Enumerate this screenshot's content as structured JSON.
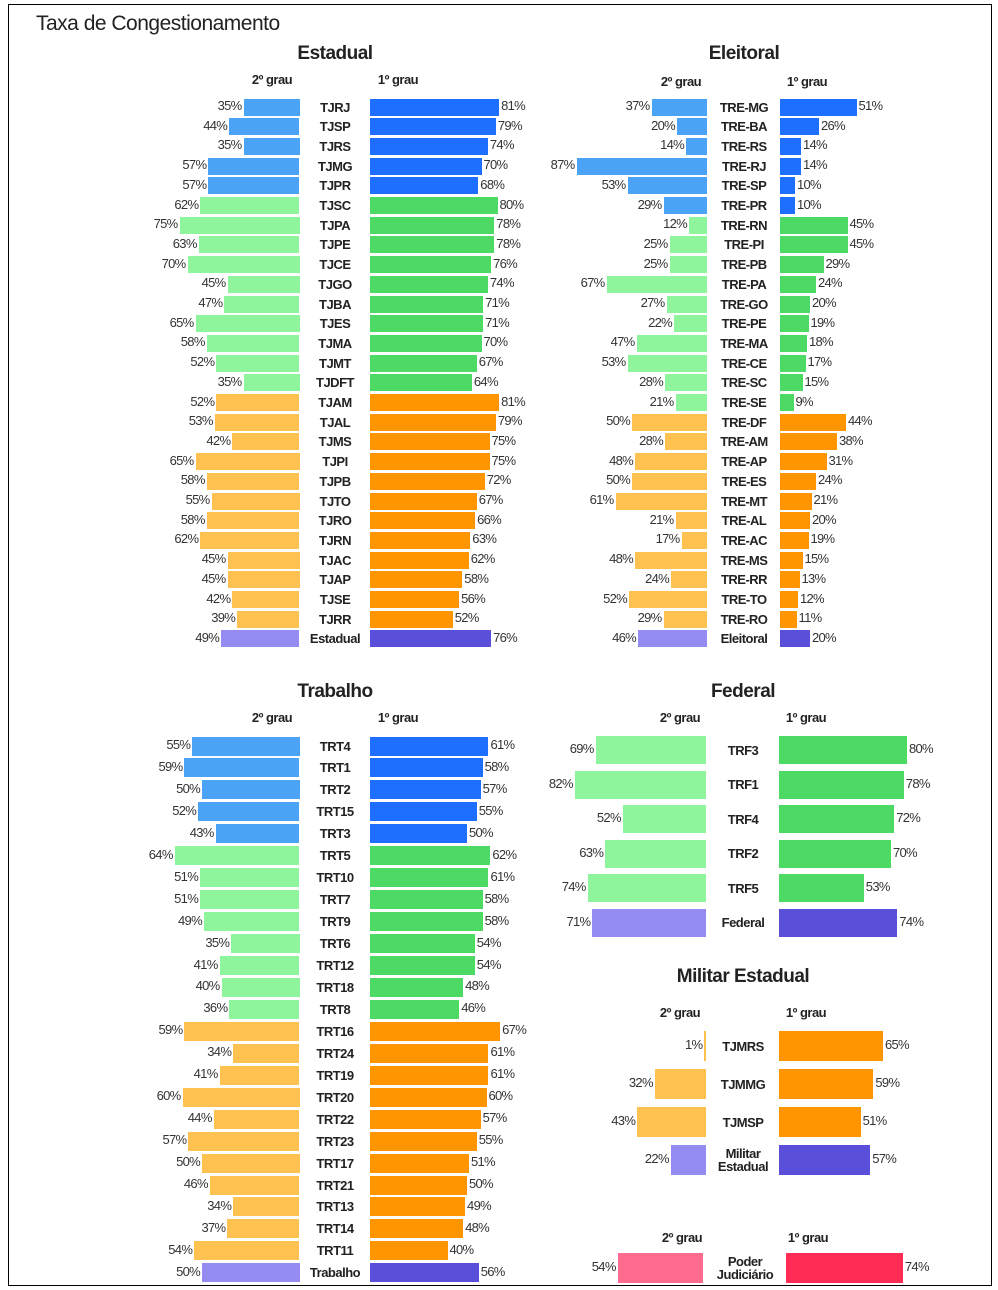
{
  "title": "Taxa de Congestionamento",
  "chart_data": [
    {
      "type": "bar",
      "title": "Estadual",
      "categories": [
        "TJRJ",
        "TJSP",
        "TJRS",
        "TJMG",
        "TJPR",
        "TJSC",
        "TJPA",
        "TJPE",
        "TJCE",
        "TJGO",
        "TJBA",
        "TJES",
        "TJMA",
        "TJMT",
        "TJDFT",
        "TJAM",
        "TJAL",
        "TJMS",
        "TJPI",
        "TJPB",
        "TJTO",
        "TJRO",
        "TJRN",
        "TJAC",
        "TJAP",
        "TJSE",
        "TJRR",
        "Estadual"
      ],
      "series": [
        {
          "name": "2º grau",
          "values": [
            35,
            44,
            35,
            57,
            57,
            62,
            75,
            63,
            70,
            45,
            47,
            65,
            58,
            52,
            35,
            52,
            53,
            42,
            65,
            58,
            55,
            58,
            62,
            45,
            45,
            42,
            39,
            49
          ],
          "value_labels": [
            "35%",
            "44%",
            "35%",
            "57%",
            "57%",
            "62%",
            "75%",
            "63%",
            "70%",
            "45%",
            "47%",
            "65%",
            "58%",
            "52%",
            "35%",
            "52%",
            "53%",
            "42%",
            "65%",
            "58%",
            "55%",
            "58%",
            "62%",
            "45%",
            "45%",
            "42%",
            "39%",
            "49%"
          ],
          "colors": [
            "#4aa3f5",
            "#4aa3f5",
            "#4aa3f5",
            "#4aa3f5",
            "#4aa3f5",
            "#8ef59d",
            "#8ef59d",
            "#8ef59d",
            "#8ef59d",
            "#8ef59d",
            "#8ef59d",
            "#8ef59d",
            "#8ef59d",
            "#8ef59d",
            "#8ef59d",
            "#ffc14f",
            "#ffc14f",
            "#ffc14f",
            "#ffc14f",
            "#ffc14f",
            "#ffc14f",
            "#ffc14f",
            "#ffc14f",
            "#ffc14f",
            "#ffc14f",
            "#ffc14f",
            "#ffc14f",
            "#958cf2"
          ]
        },
        {
          "name": "1º grau",
          "values": [
            81,
            79,
            74,
            70,
            68,
            80,
            78,
            78,
            76,
            74,
            71,
            71,
            70,
            67,
            64,
            81,
            79,
            75,
            75,
            72,
            67,
            66,
            63,
            62,
            58,
            56,
            52,
            76
          ],
          "value_labels": [
            "81%",
            "79%",
            "74%",
            "70%",
            "68%",
            "80%",
            "78%",
            "78%",
            "76%",
            "74%",
            "71%",
            "71%",
            "70%",
            "67%",
            "64%",
            "81%",
            "79%",
            "75%",
            "75%",
            "72%",
            "67%",
            "66%",
            "63%",
            "62%",
            "58%",
            "56%",
            "52%",
            "76%"
          ],
          "colors": [
            "#1f6fff",
            "#1f6fff",
            "#1f6fff",
            "#1f6fff",
            "#1f6fff",
            "#4cd964",
            "#4cd964",
            "#4cd964",
            "#4cd964",
            "#4cd964",
            "#4cd964",
            "#4cd964",
            "#4cd964",
            "#4cd964",
            "#4cd964",
            "#ff9500",
            "#ff9500",
            "#ff9500",
            "#ff9500",
            "#ff9500",
            "#ff9500",
            "#ff9500",
            "#ff9500",
            "#ff9500",
            "#ff9500",
            "#ff9500",
            "#ff9500",
            "#5a4fd8"
          ]
        }
      ]
    },
    {
      "type": "bar",
      "title": "Eleitoral",
      "categories": [
        "TRE-MG",
        "TRE-BA",
        "TRE-RS",
        "TRE-RJ",
        "TRE-SP",
        "TRE-PR",
        "TRE-RN",
        "TRE-PI",
        "TRE-PB",
        "TRE-PA",
        "TRE-GO",
        "TRE-PE",
        "TRE-MA",
        "TRE-CE",
        "TRE-SC",
        "TRE-SE",
        "TRE-DF",
        "TRE-AM",
        "TRE-AP",
        "TRE-ES",
        "TRE-MT",
        "TRE-AL",
        "TRE-AC",
        "TRE-MS",
        "TRE-RR",
        "TRE-TO",
        "TRE-RO",
        "Eleitoral"
      ],
      "series": [
        {
          "name": "2º grau",
          "values": [
            37,
            20,
            14,
            87,
            53,
            29,
            12,
            25,
            25,
            67,
            27,
            22,
            47,
            53,
            28,
            21,
            50,
            28,
            48,
            50,
            61,
            21,
            17,
            48,
            24,
            52,
            29,
            46
          ],
          "value_labels": [
            "37%",
            "20%",
            "14%",
            "87%",
            "53%",
            "29%",
            "12%",
            "25%",
            "25%",
            "67%",
            "27%",
            "22%",
            "47%",
            "53%",
            "28%",
            "21%",
            "50%",
            "28%",
            "48%",
            "50%",
            "61%",
            "21%",
            "17%",
            "48%",
            "24%",
            "52%",
            "29%",
            "46%"
          ],
          "colors": [
            "#4aa3f5",
            "#4aa3f5",
            "#4aa3f5",
            "#4aa3f5",
            "#4aa3f5",
            "#4aa3f5",
            "#8ef59d",
            "#8ef59d",
            "#8ef59d",
            "#8ef59d",
            "#8ef59d",
            "#8ef59d",
            "#8ef59d",
            "#8ef59d",
            "#8ef59d",
            "#8ef59d",
            "#ffc14f",
            "#ffc14f",
            "#ffc14f",
            "#ffc14f",
            "#ffc14f",
            "#ffc14f",
            "#ffc14f",
            "#ffc14f",
            "#ffc14f",
            "#ffc14f",
            "#ffc14f",
            "#958cf2"
          ]
        },
        {
          "name": "1º grau",
          "values": [
            51,
            26,
            14,
            14,
            10,
            10,
            45,
            45,
            29,
            24,
            20,
            19,
            18,
            17,
            15,
            9,
            44,
            38,
            31,
            24,
            21,
            20,
            19,
            15,
            13,
            12,
            11,
            20
          ],
          "value_labels": [
            "51%",
            "26%",
            "14%",
            "14%",
            "10%",
            "10%",
            "45%",
            "45%",
            "29%",
            "24%",
            "20%",
            "19%",
            "18%",
            "17%",
            "15%",
            "9%",
            "44%",
            "38%",
            "31%",
            "24%",
            "21%",
            "20%",
            "19%",
            "15%",
            "13%",
            "12%",
            "11%",
            "20%"
          ],
          "colors": [
            "#1f6fff",
            "#1f6fff",
            "#1f6fff",
            "#1f6fff",
            "#1f6fff",
            "#1f6fff",
            "#4cd964",
            "#4cd964",
            "#4cd964",
            "#4cd964",
            "#4cd964",
            "#4cd964",
            "#4cd964",
            "#4cd964",
            "#4cd964",
            "#4cd964",
            "#ff9500",
            "#ff9500",
            "#ff9500",
            "#ff9500",
            "#ff9500",
            "#ff9500",
            "#ff9500",
            "#ff9500",
            "#ff9500",
            "#ff9500",
            "#ff9500",
            "#5a4fd8"
          ]
        }
      ]
    },
    {
      "type": "bar",
      "title": "Trabalho",
      "categories": [
        "TRT4",
        "TRT1",
        "TRT2",
        "TRT15",
        "TRT3",
        "TRT5",
        "TRT10",
        "TRT7",
        "TRT9",
        "TRT6",
        "TRT12",
        "TRT18",
        "TRT8",
        "TRT16",
        "TRT24",
        "TRT19",
        "TRT20",
        "TRT22",
        "TRT23",
        "TRT17",
        "TRT21",
        "TRT13",
        "TRT14",
        "TRT11",
        "Trabalho"
      ],
      "series": [
        {
          "name": "2º grau",
          "values": [
            55,
            59,
            50,
            52,
            43,
            64,
            51,
            51,
            49,
            35,
            41,
            40,
            36,
            59,
            34,
            41,
            60,
            44,
            57,
            50,
            46,
            34,
            37,
            54,
            50
          ],
          "value_labels": [
            "55%",
            "59%",
            "50%",
            "52%",
            "43%",
            "64%",
            "51%",
            "51%",
            "49%",
            "35%",
            "41%",
            "40%",
            "36%",
            "59%",
            "34%",
            "41%",
            "60%",
            "44%",
            "57%",
            "50%",
            "46%",
            "34%",
            "37%",
            "54%",
            "50%"
          ],
          "colors": [
            "#4aa3f5",
            "#4aa3f5",
            "#4aa3f5",
            "#4aa3f5",
            "#4aa3f5",
            "#8ef59d",
            "#8ef59d",
            "#8ef59d",
            "#8ef59d",
            "#8ef59d",
            "#8ef59d",
            "#8ef59d",
            "#8ef59d",
            "#ffc14f",
            "#ffc14f",
            "#ffc14f",
            "#ffc14f",
            "#ffc14f",
            "#ffc14f",
            "#ffc14f",
            "#ffc14f",
            "#ffc14f",
            "#ffc14f",
            "#ffc14f",
            "#958cf2"
          ]
        },
        {
          "name": "1º grau",
          "values": [
            61,
            58,
            57,
            55,
            50,
            62,
            61,
            58,
            58,
            54,
            54,
            48,
            46,
            67,
            61,
            61,
            60,
            57,
            55,
            51,
            50,
            49,
            48,
            40,
            56
          ],
          "value_labels": [
            "61%",
            "58%",
            "57%",
            "55%",
            "50%",
            "62%",
            "61%",
            "58%",
            "58%",
            "54%",
            "54%",
            "48%",
            "46%",
            "67%",
            "61%",
            "61%",
            "60%",
            "57%",
            "55%",
            "51%",
            "50%",
            "49%",
            "48%",
            "40%",
            "56%"
          ],
          "colors": [
            "#1f6fff",
            "#1f6fff",
            "#1f6fff",
            "#1f6fff",
            "#1f6fff",
            "#4cd964",
            "#4cd964",
            "#4cd964",
            "#4cd964",
            "#4cd964",
            "#4cd964",
            "#4cd964",
            "#4cd964",
            "#ff9500",
            "#ff9500",
            "#ff9500",
            "#ff9500",
            "#ff9500",
            "#ff9500",
            "#ff9500",
            "#ff9500",
            "#ff9500",
            "#ff9500",
            "#ff9500",
            "#5a4fd8"
          ]
        }
      ]
    },
    {
      "type": "bar",
      "title": "Federal",
      "categories": [
        "TRF3",
        "TRF1",
        "TRF4",
        "TRF2",
        "TRF5",
        "Federal"
      ],
      "series": [
        {
          "name": "2º grau",
          "values": [
            69,
            82,
            52,
            63,
            74,
            71
          ],
          "value_labels": [
            "69%",
            "82%",
            "52%",
            "63%",
            "74%",
            "71%"
          ],
          "colors": [
            "#8ef59d",
            "#8ef59d",
            "#8ef59d",
            "#8ef59d",
            "#8ef59d",
            "#958cf2"
          ]
        },
        {
          "name": "1º grau",
          "values": [
            80,
            78,
            72,
            70,
            53,
            74
          ],
          "value_labels": [
            "80%",
            "78%",
            "72%",
            "70%",
            "53%",
            "74%"
          ],
          "colors": [
            "#4cd964",
            "#4cd964",
            "#4cd964",
            "#4cd964",
            "#4cd964",
            "#5a4fd8"
          ]
        }
      ]
    },
    {
      "type": "bar",
      "title": "Militar Estadual",
      "categories": [
        "TJMRS",
        "TJMMG",
        "TJMSP",
        "Militar Estadual"
      ],
      "series": [
        {
          "name": "2º grau",
          "values": [
            1,
            32,
            43,
            22
          ],
          "value_labels": [
            "1%",
            "32%",
            "43%",
            "22%"
          ],
          "colors": [
            "#ffc14f",
            "#ffc14f",
            "#ffc14f",
            "#958cf2"
          ]
        },
        {
          "name": "1º grau",
          "values": [
            65,
            59,
            51,
            57
          ],
          "value_labels": [
            "65%",
            "59%",
            "51%",
            "57%"
          ],
          "colors": [
            "#ff9500",
            "#ff9500",
            "#ff9500",
            "#5a4fd8"
          ]
        }
      ]
    },
    {
      "type": "bar",
      "categories": [
        "Poder Judiciário"
      ],
      "series": [
        {
          "name": "2º grau",
          "values": [
            54
          ],
          "value_labels": [
            "54%"
          ],
          "colors": [
            "#ff6b8e"
          ]
        },
        {
          "name": "1º grau",
          "values": [
            74
          ],
          "value_labels": [
            "74%"
          ],
          "colors": [
            "#ff2d55"
          ]
        }
      ]
    }
  ]
}
